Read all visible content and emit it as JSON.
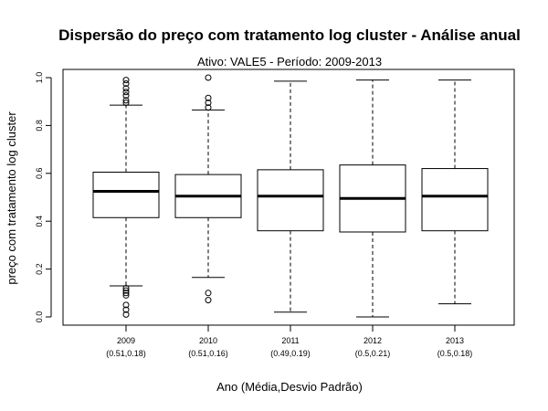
{
  "chart_data": {
    "type": "boxplot",
    "title": "Dispersão do  preço com tratamento log cluster  - Análise anual",
    "subtitle": "Ativo: VALE5 - Período: 2009-2013",
    "xlabel": "Ano (Média,Desvio Padrão)",
    "ylabel": "preço com tratamento log cluster",
    "ylim": [
      0,
      1
    ],
    "yticks": [
      "0.0",
      "0.2",
      "0.4",
      "0.6",
      "0.8",
      "1.0"
    ],
    "grid": false,
    "categories": [
      "2009",
      "2010",
      "2011",
      "2012",
      "2013"
    ],
    "stats_labels": [
      "(0.51,0.18)",
      "(0.51,0.16)",
      "(0.49,0.19)",
      "(0.5,0.21)",
      "(0.5,0.18)"
    ],
    "boxes": [
      {
        "category": "2009",
        "whisker_low": 0.13,
        "q1": 0.415,
        "median": 0.525,
        "q3": 0.605,
        "whisker_high": 0.885,
        "outliers": [
          0.99,
          0.975,
          0.955,
          0.94,
          0.925,
          0.905,
          0.895,
          0.12,
          0.11,
          0.1,
          0.09,
          0.05,
          0.03,
          0.01
        ]
      },
      {
        "category": "2010",
        "whisker_low": 0.165,
        "q1": 0.415,
        "median": 0.505,
        "q3": 0.595,
        "whisker_high": 0.865,
        "outliers": [
          1.0,
          0.915,
          0.895,
          0.875,
          0.1,
          0.07
        ]
      },
      {
        "category": "2011",
        "whisker_low": 0.02,
        "q1": 0.36,
        "median": 0.505,
        "q3": 0.615,
        "whisker_high": 0.985,
        "outliers": []
      },
      {
        "category": "2012",
        "whisker_low": 0.0,
        "q1": 0.355,
        "median": 0.495,
        "q3": 0.635,
        "whisker_high": 0.99,
        "outliers": []
      },
      {
        "category": "2013",
        "whisker_low": 0.055,
        "q1": 0.36,
        "median": 0.505,
        "q3": 0.62,
        "whisker_high": 0.99,
        "outliers": []
      }
    ]
  }
}
